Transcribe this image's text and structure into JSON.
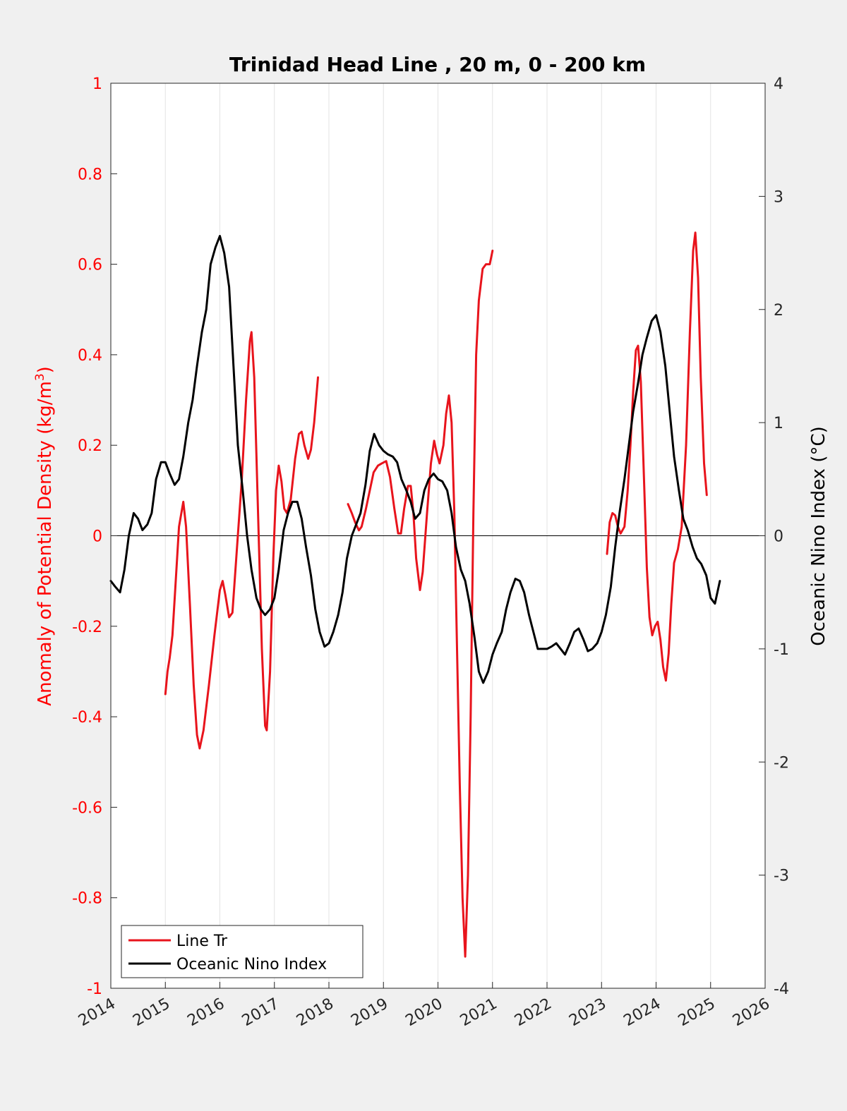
{
  "chart_data": {
    "type": "line",
    "title": "Trinidad Head Line , 20 m, 0 - 200 km",
    "ylabel_left_main": "Anomaly of Potential Density (kg/m",
    "ylabel_left_sup": "3",
    "ylabel_left_close": ")",
    "ylabel_right": "Oceanic Nino Index (°C)",
    "xlim": [
      2014,
      2026
    ],
    "ylim_left": [
      -1,
      1
    ],
    "ylim_right": [
      -4,
      4
    ],
    "x_ticks": [
      "2014",
      "2015",
      "2016",
      "2017",
      "2018",
      "2019",
      "2020",
      "2021",
      "2022",
      "2023",
      "2024",
      "2025",
      "2026"
    ],
    "y_left_ticks": [
      "1",
      "0.8",
      "0.6",
      "0.4",
      "0.2",
      "0",
      "-0.2",
      "-0.4",
      "-0.6",
      "-0.8",
      "-1"
    ],
    "y_right_ticks": [
      "4",
      "3",
      "2",
      "1",
      "0",
      "-1",
      "-2",
      "-3",
      "-4"
    ],
    "grid": "vertical",
    "legend_position": "bottom-left",
    "colors": {
      "left_axis": "#ff0000",
      "series_red": "#e8141c",
      "series_black": "#000000",
      "zero_line": "#000000"
    },
    "series": [
      {
        "name": "Line Tr",
        "axis": "left",
        "segments": [
          [
            [
              2015.0,
              -0.35
            ],
            [
              2015.04,
              -0.3
            ],
            [
              2015.08,
              -0.27
            ],
            [
              2015.13,
              -0.22
            ],
            [
              2015.18,
              -0.12
            ],
            [
              2015.25,
              0.02
            ],
            [
              2015.33,
              0.075
            ],
            [
              2015.38,
              0.02
            ],
            [
              2015.45,
              -0.15
            ],
            [
              2015.52,
              -0.33
            ],
            [
              2015.58,
              -0.44
            ],
            [
              2015.63,
              -0.47
            ],
            [
              2015.7,
              -0.43
            ],
            [
              2015.8,
              -0.33
            ],
            [
              2015.9,
              -0.22
            ],
            [
              2016.0,
              -0.12
            ],
            [
              2016.05,
              -0.1
            ],
            [
              2016.1,
              -0.13
            ],
            [
              2016.17,
              -0.18
            ],
            [
              2016.23,
              -0.17
            ],
            [
              2016.3,
              -0.05
            ],
            [
              2016.4,
              0.12
            ],
            [
              2016.48,
              0.3
            ],
            [
              2016.55,
              0.43
            ],
            [
              2016.58,
              0.45
            ],
            [
              2016.63,
              0.35
            ],
            [
              2016.7,
              0.05
            ],
            [
              2016.77,
              -0.25
            ],
            [
              2016.83,
              -0.42
            ],
            [
              2016.86,
              -0.43
            ],
            [
              2016.92,
              -0.3
            ],
            [
              2016.98,
              -0.05
            ],
            [
              2017.03,
              0.1
            ],
            [
              2017.08,
              0.155
            ],
            [
              2017.13,
              0.12
            ],
            [
              2017.18,
              0.06
            ],
            [
              2017.23,
              0.05
            ],
            [
              2017.3,
              0.08
            ],
            [
              2017.38,
              0.17
            ],
            [
              2017.45,
              0.225
            ],
            [
              2017.5,
              0.23
            ],
            [
              2017.55,
              0.2
            ],
            [
              2017.62,
              0.17
            ],
            [
              2017.67,
              0.19
            ],
            [
              2017.73,
              0.25
            ],
            [
              2017.8,
              0.35
            ]
          ],
          [
            [
              2018.35,
              0.07
            ],
            [
              2018.42,
              0.05
            ],
            [
              2018.48,
              0.03
            ],
            [
              2018.55,
              0.012
            ],
            [
              2018.6,
              0.02
            ],
            [
              2018.68,
              0.06
            ],
            [
              2018.75,
              0.1
            ],
            [
              2018.82,
              0.14
            ],
            [
              2018.9,
              0.155
            ],
            [
              2018.97,
              0.16
            ],
            [
              2019.05,
              0.165
            ],
            [
              2019.12,
              0.13
            ],
            [
              2019.2,
              0.06
            ],
            [
              2019.27,
              0.005
            ],
            [
              2019.32,
              0.005
            ],
            [
              2019.38,
              0.06
            ],
            [
              2019.45,
              0.11
            ],
            [
              2019.5,
              0.11
            ],
            [
              2019.55,
              0.05
            ],
            [
              2019.6,
              -0.05
            ],
            [
              2019.67,
              -0.12
            ],
            [
              2019.72,
              -0.08
            ],
            [
              2019.8,
              0.05
            ],
            [
              2019.87,
              0.16
            ],
            [
              2019.93,
              0.21
            ],
            [
              2019.98,
              0.18
            ],
            [
              2020.03,
              0.16
            ],
            [
              2020.1,
              0.2
            ],
            [
              2020.15,
              0.27
            ],
            [
              2020.2,
              0.31
            ],
            [
              2020.25,
              0.25
            ],
            [
              2020.3,
              0.05
            ],
            [
              2020.35,
              -0.25
            ],
            [
              2020.4,
              -0.55
            ],
            [
              2020.45,
              -0.8
            ],
            [
              2020.5,
              -0.93
            ],
            [
              2020.55,
              -0.75
            ],
            [
              2020.6,
              -0.4
            ],
            [
              2020.65,
              0.05
            ],
            [
              2020.7,
              0.4
            ],
            [
              2020.75,
              0.52
            ],
            [
              2020.82,
              0.59
            ],
            [
              2020.88,
              0.6
            ],
            [
              2020.95,
              0.6
            ],
            [
              2021.0,
              0.63
            ]
          ],
          [
            [
              2023.1,
              -0.04
            ],
            [
              2023.15,
              0.03
            ],
            [
              2023.2,
              0.05
            ],
            [
              2023.25,
              0.045
            ],
            [
              2023.3,
              0.02
            ],
            [
              2023.35,
              0.005
            ],
            [
              2023.42,
              0.02
            ],
            [
              2023.48,
              0.1
            ],
            [
              2023.53,
              0.2
            ],
            [
              2023.58,
              0.32
            ],
            [
              2023.63,
              0.41
            ],
            [
              2023.67,
              0.42
            ],
            [
              2023.72,
              0.34
            ],
            [
              2023.78,
              0.12
            ],
            [
              2023.83,
              -0.07
            ],
            [
              2023.88,
              -0.18
            ],
            [
              2023.93,
              -0.22
            ],
            [
              2023.98,
              -0.2
            ],
            [
              2024.03,
              -0.19
            ],
            [
              2024.08,
              -0.23
            ],
            [
              2024.13,
              -0.29
            ],
            [
              2024.18,
              -0.32
            ],
            [
              2024.23,
              -0.26
            ],
            [
              2024.28,
              -0.15
            ],
            [
              2024.33,
              -0.06
            ],
            [
              2024.4,
              -0.03
            ],
            [
              2024.47,
              0.02
            ],
            [
              2024.55,
              0.2
            ],
            [
              2024.62,
              0.45
            ],
            [
              2024.68,
              0.63
            ],
            [
              2024.72,
              0.67
            ],
            [
              2024.77,
              0.57
            ],
            [
              2024.82,
              0.35
            ],
            [
              2024.88,
              0.16
            ],
            [
              2024.93,
              0.09
            ]
          ]
        ]
      },
      {
        "name": "Oceanic Nino Index",
        "axis": "right",
        "segments": [
          [
            [
              2014.0,
              -0.4
            ],
            [
              2014.08,
              -0.45
            ],
            [
              2014.17,
              -0.5
            ],
            [
              2014.25,
              -0.3
            ],
            [
              2014.33,
              0.0
            ],
            [
              2014.42,
              0.2
            ],
            [
              2014.5,
              0.15
            ],
            [
              2014.58,
              0.05
            ],
            [
              2014.67,
              0.1
            ],
            [
              2014.75,
              0.2
            ],
            [
              2014.83,
              0.5
            ],
            [
              2014.92,
              0.65
            ],
            [
              2015.0,
              0.65
            ],
            [
              2015.08,
              0.55
            ],
            [
              2015.17,
              0.45
            ],
            [
              2015.25,
              0.5
            ],
            [
              2015.33,
              0.7
            ],
            [
              2015.42,
              1.0
            ],
            [
              2015.5,
              1.2
            ],
            [
              2015.58,
              1.5
            ],
            [
              2015.67,
              1.8
            ],
            [
              2015.75,
              2.0
            ],
            [
              2015.83,
              2.4
            ],
            [
              2015.92,
              2.55
            ],
            [
              2016.0,
              2.65
            ],
            [
              2016.08,
              2.5
            ],
            [
              2016.17,
              2.2
            ],
            [
              2016.25,
              1.5
            ],
            [
              2016.33,
              0.8
            ],
            [
              2016.42,
              0.4
            ],
            [
              2016.5,
              0.0
            ],
            [
              2016.58,
              -0.3
            ],
            [
              2016.67,
              -0.55
            ],
            [
              2016.75,
              -0.65
            ],
            [
              2016.83,
              -0.7
            ],
            [
              2016.92,
              -0.65
            ],
            [
              2017.0,
              -0.55
            ],
            [
              2017.08,
              -0.3
            ],
            [
              2017.17,
              0.05
            ],
            [
              2017.25,
              0.2
            ],
            [
              2017.33,
              0.3
            ],
            [
              2017.42,
              0.3
            ],
            [
              2017.5,
              0.15
            ],
            [
              2017.58,
              -0.1
            ],
            [
              2017.67,
              -0.35
            ],
            [
              2017.75,
              -0.65
            ],
            [
              2017.83,
              -0.85
            ],
            [
              2017.92,
              -0.98
            ],
            [
              2018.0,
              -0.95
            ],
            [
              2018.08,
              -0.85
            ],
            [
              2018.17,
              -0.7
            ],
            [
              2018.25,
              -0.5
            ],
            [
              2018.33,
              -0.2
            ],
            [
              2018.42,
              0.0
            ],
            [
              2018.5,
              0.1
            ],
            [
              2018.58,
              0.2
            ],
            [
              2018.67,
              0.45
            ],
            [
              2018.75,
              0.75
            ],
            [
              2018.83,
              0.9
            ],
            [
              2018.92,
              0.8
            ],
            [
              2019.0,
              0.75
            ],
            [
              2019.08,
              0.72
            ],
            [
              2019.17,
              0.7
            ],
            [
              2019.25,
              0.65
            ],
            [
              2019.33,
              0.5
            ],
            [
              2019.42,
              0.4
            ],
            [
              2019.5,
              0.3
            ],
            [
              2019.58,
              0.15
            ],
            [
              2019.67,
              0.2
            ],
            [
              2019.75,
              0.4
            ],
            [
              2019.83,
              0.5
            ],
            [
              2019.92,
              0.55
            ],
            [
              2020.0,
              0.5
            ],
            [
              2020.08,
              0.48
            ],
            [
              2020.17,
              0.4
            ],
            [
              2020.25,
              0.2
            ],
            [
              2020.33,
              -0.1
            ],
            [
              2020.42,
              -0.3
            ],
            [
              2020.5,
              -0.4
            ],
            [
              2020.58,
              -0.6
            ],
            [
              2020.67,
              -0.9
            ],
            [
              2020.75,
              -1.2
            ],
            [
              2020.83,
              -1.3
            ],
            [
              2020.92,
              -1.2
            ],
            [
              2021.0,
              -1.05
            ],
            [
              2021.08,
              -0.95
            ],
            [
              2021.17,
              -0.85
            ],
            [
              2021.25,
              -0.65
            ],
            [
              2021.33,
              -0.5
            ],
            [
              2021.42,
              -0.38
            ],
            [
              2021.5,
              -0.4
            ],
            [
              2021.58,
              -0.5
            ],
            [
              2021.67,
              -0.7
            ],
            [
              2021.75,
              -0.85
            ],
            [
              2021.83,
              -1.0
            ],
            [
              2021.92,
              -1.0
            ],
            [
              2022.0,
              -1.0
            ],
            [
              2022.08,
              -0.98
            ],
            [
              2022.17,
              -0.95
            ],
            [
              2022.25,
              -1.0
            ],
            [
              2022.33,
              -1.05
            ],
            [
              2022.42,
              -0.95
            ],
            [
              2022.5,
              -0.85
            ],
            [
              2022.58,
              -0.82
            ],
            [
              2022.67,
              -0.92
            ],
            [
              2022.75,
              -1.02
            ],
            [
              2022.83,
              -1.0
            ],
            [
              2022.92,
              -0.95
            ],
            [
              2023.0,
              -0.85
            ],
            [
              2023.08,
              -0.7
            ],
            [
              2023.17,
              -0.45
            ],
            [
              2023.25,
              -0.1
            ],
            [
              2023.33,
              0.2
            ],
            [
              2023.42,
              0.5
            ],
            [
              2023.5,
              0.8
            ],
            [
              2023.58,
              1.1
            ],
            [
              2023.67,
              1.35
            ],
            [
              2023.75,
              1.6
            ],
            [
              2023.83,
              1.75
            ],
            [
              2023.92,
              1.9
            ],
            [
              2024.0,
              1.95
            ],
            [
              2024.08,
              1.8
            ],
            [
              2024.17,
              1.5
            ],
            [
              2024.25,
              1.1
            ],
            [
              2024.33,
              0.7
            ],
            [
              2024.42,
              0.4
            ],
            [
              2024.5,
              0.15
            ],
            [
              2024.58,
              0.05
            ],
            [
              2024.67,
              -0.1
            ],
            [
              2024.75,
              -0.2
            ],
            [
              2024.83,
              -0.25
            ],
            [
              2024.92,
              -0.35
            ],
            [
              2025.0,
              -0.55
            ],
            [
              2025.08,
              -0.6
            ],
            [
              2025.17,
              -0.4
            ]
          ]
        ]
      }
    ]
  }
}
